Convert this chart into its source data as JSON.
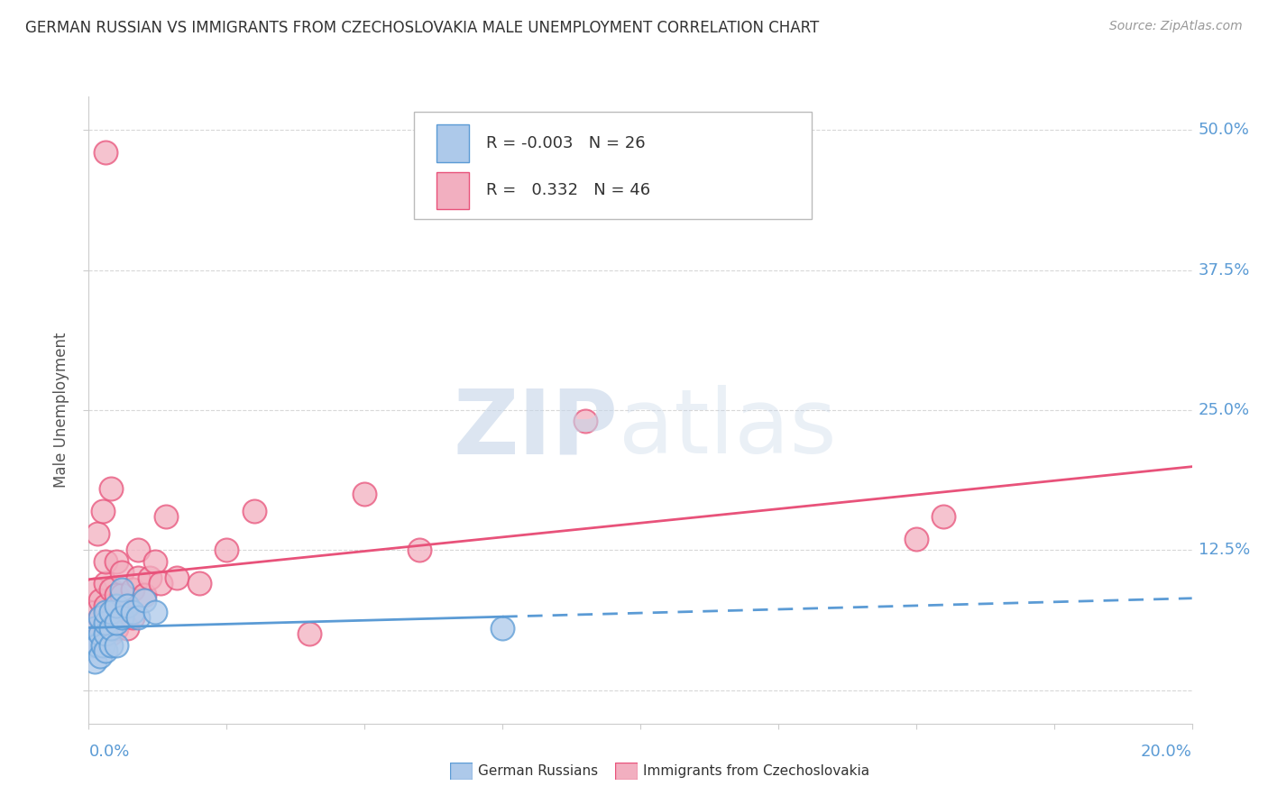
{
  "title": "GERMAN RUSSIAN VS IMMIGRANTS FROM CZECHOSLOVAKIA MALE UNEMPLOYMENT CORRELATION CHART",
  "source": "Source: ZipAtlas.com",
  "ylabel": "Male Unemployment",
  "yticks": [
    0.0,
    0.125,
    0.25,
    0.375,
    0.5
  ],
  "ytick_labels": [
    "",
    "12.5%",
    "25.0%",
    "37.5%",
    "50.0%"
  ],
  "xlim": [
    0.0,
    0.2
  ],
  "ylim": [
    -0.03,
    0.53
  ],
  "watermark_zip": "ZIP",
  "watermark_atlas": "atlas",
  "label1": "German Russians",
  "label2": "Immigrants from Czechoslovakia",
  "color1_face": "#adc9ea",
  "color1_edge": "#5b9bd5",
  "color2_face": "#f2afc0",
  "color2_edge": "#e8527a",
  "trendline1_color": "#5b9bd5",
  "trendline2_color": "#e8527a",
  "blue_x": [
    0.0008,
    0.001,
    0.001,
    0.0015,
    0.002,
    0.002,
    0.002,
    0.0025,
    0.003,
    0.003,
    0.003,
    0.003,
    0.004,
    0.004,
    0.004,
    0.005,
    0.005,
    0.005,
    0.006,
    0.006,
    0.007,
    0.008,
    0.009,
    0.01,
    0.012,
    0.075
  ],
  "blue_y": [
    0.04,
    0.025,
    0.055,
    0.04,
    0.03,
    0.05,
    0.065,
    0.04,
    0.035,
    0.05,
    0.06,
    0.07,
    0.04,
    0.055,
    0.07,
    0.04,
    0.06,
    0.075,
    0.065,
    0.09,
    0.075,
    0.07,
    0.065,
    0.08,
    0.07,
    0.055
  ],
  "pink_x": [
    0.0005,
    0.001,
    0.001,
    0.001,
    0.0015,
    0.002,
    0.002,
    0.002,
    0.0025,
    0.003,
    0.003,
    0.003,
    0.003,
    0.004,
    0.004,
    0.004,
    0.005,
    0.005,
    0.005,
    0.005,
    0.006,
    0.006,
    0.006,
    0.007,
    0.007,
    0.008,
    0.008,
    0.009,
    0.009,
    0.01,
    0.011,
    0.012,
    0.013,
    0.014,
    0.016,
    0.02,
    0.025,
    0.03,
    0.05,
    0.06,
    0.09,
    0.15,
    0.155,
    0.04,
    0.003,
    0.004
  ],
  "pink_y": [
    0.045,
    0.055,
    0.07,
    0.09,
    0.14,
    0.05,
    0.065,
    0.08,
    0.16,
    0.055,
    0.075,
    0.095,
    0.115,
    0.05,
    0.065,
    0.09,
    0.055,
    0.07,
    0.085,
    0.115,
    0.065,
    0.085,
    0.105,
    0.055,
    0.075,
    0.065,
    0.09,
    0.1,
    0.125,
    0.085,
    0.1,
    0.115,
    0.095,
    0.155,
    0.1,
    0.095,
    0.125,
    0.16,
    0.175,
    0.125,
    0.24,
    0.135,
    0.155,
    0.05,
    0.48,
    0.18
  ],
  "background_color": "#ffffff",
  "grid_color": "#d8d8d8",
  "title_fontsize": 12,
  "source_fontsize": 10,
  "tick_label_fontsize": 13,
  "ylabel_fontsize": 12
}
